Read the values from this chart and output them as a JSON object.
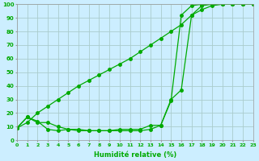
{
  "xlabel": "Humidité relative (%)",
  "bg_color": "#cceeff",
  "grid_color": "#aacccc",
  "line_color": "#00aa00",
  "xlim": [
    0,
    23
  ],
  "ylim": [
    0,
    100
  ],
  "xticks": [
    0,
    1,
    2,
    3,
    4,
    5,
    6,
    7,
    8,
    9,
    10,
    11,
    12,
    13,
    14,
    15,
    16,
    17,
    18,
    19,
    20,
    21,
    22,
    23
  ],
  "yticks": [
    0,
    10,
    20,
    30,
    40,
    50,
    60,
    70,
    80,
    90,
    100
  ],
  "line1_x": [
    0,
    1,
    2,
    3,
    4,
    5,
    6,
    7,
    8,
    9,
    10,
    11,
    12,
    13,
    14,
    15,
    16,
    17,
    18,
    19,
    20,
    21,
    22,
    23
  ],
  "line1_y": [
    9,
    17,
    14,
    8,
    7,
    8,
    8,
    7,
    7,
    7,
    8,
    8,
    8,
    11,
    11,
    30,
    37,
    92,
    99,
    100,
    100,
    100,
    100,
    100
  ],
  "line2_x": [
    0,
    1,
    2,
    3,
    4,
    5,
    6,
    7,
    8,
    9,
    10,
    11,
    12,
    13,
    14,
    15,
    16,
    17,
    18,
    19,
    20,
    21,
    22,
    23
  ],
  "line2_y": [
    9,
    17,
    13,
    13,
    10,
    8,
    7,
    7,
    7,
    7,
    7,
    7,
    7,
    8,
    11,
    29,
    92,
    99,
    100,
    100,
    100,
    100,
    100,
    100
  ],
  "line3_x": [
    0,
    1,
    2,
    3,
    4,
    5,
    6,
    7,
    8,
    9,
    10,
    11,
    12,
    13,
    14,
    15,
    16,
    17,
    18,
    19,
    20,
    21,
    22,
    23
  ],
  "line3_y": [
    9,
    13,
    20,
    25,
    30,
    35,
    40,
    44,
    48,
    52,
    56,
    60,
    65,
    70,
    75,
    80,
    85,
    92,
    96,
    99,
    100,
    100,
    100,
    100
  ]
}
